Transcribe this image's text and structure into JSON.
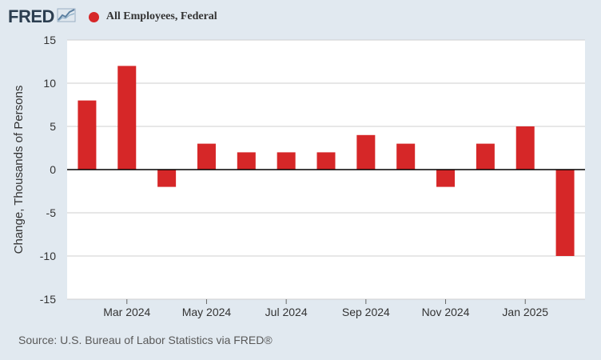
{
  "header": {
    "logo_text": "FRED",
    "logo_icon": "line-chart-icon",
    "legend_label": "All Employees, Federal",
    "series_color": "#d62728"
  },
  "chart_data": {
    "type": "bar",
    "title": "All Employees, Federal",
    "xlabel": "",
    "ylabel": "Change, Thousands of Persons",
    "ylim": [
      -15,
      15
    ],
    "yticks": [
      15,
      10,
      5,
      0,
      -5,
      -10,
      -15
    ],
    "ytick_labels": [
      "15",
      "10",
      "5",
      "0",
      "-5",
      "-10",
      "-15"
    ],
    "categories": [
      "Feb 2024",
      "Mar 2024",
      "Apr 2024",
      "May 2024",
      "Jun 2024",
      "Jul 2024",
      "Aug 2024",
      "Sep 2024",
      "Oct 2024",
      "Nov 2024",
      "Dec 2024",
      "Jan 2025",
      "Feb 2025"
    ],
    "values": [
      8,
      12,
      -2,
      3,
      2,
      2,
      2,
      4,
      3,
      -2,
      3,
      5,
      -10
    ],
    "xtick_labels": [
      "Mar 2024",
      "May 2024",
      "Jul 2024",
      "Sep 2024",
      "Nov 2024",
      "Jan 2025"
    ],
    "grid": true,
    "bar_color": "#d62728"
  },
  "footer": {
    "source": "Source: U.S. Bureau of Labor Statistics via FRED®"
  }
}
